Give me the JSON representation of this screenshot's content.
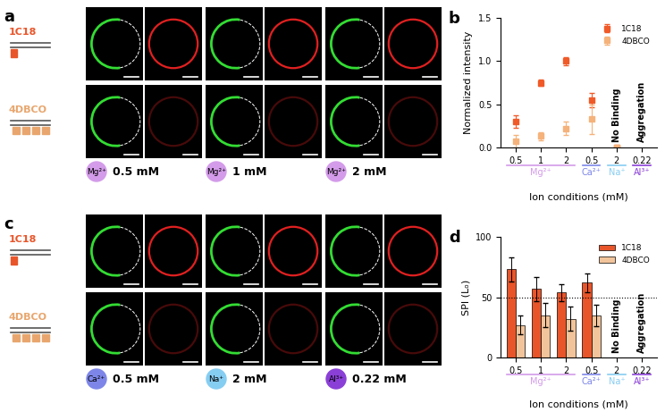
{
  "image_panels": [
    {
      "label": "a",
      "rows": [
        {
          "name": "1C18",
          "color": "#e8552a"
        },
        {
          "name": "4DBCO",
          "color": "#e8a66e"
        }
      ],
      "conditions": [
        {
          "ion": "Mg²⁺",
          "concentration": "0.5 mM",
          "color": "#d39be9"
        },
        {
          "ion": "Mg²⁺",
          "concentration": "1 mM",
          "color": "#d39be9"
        },
        {
          "ion": "Mg²⁺",
          "concentration": "2 mM",
          "color": "#d39be9"
        }
      ]
    },
    {
      "label": "c",
      "rows": [
        {
          "name": "1C18",
          "color": "#e8552a"
        },
        {
          "name": "4DBCO",
          "color": "#e8a66e"
        }
      ],
      "conditions": [
        {
          "ion": "Ca²⁺",
          "concentration": "0.5 mM",
          "color": "#7d86e8"
        },
        {
          "ion": "Na⁺",
          "concentration": "2 mM",
          "color": "#86cdf2"
        },
        {
          "ion": "Al³⁺",
          "concentration": "0.22 mM",
          "color": "#8a3fd6"
        }
      ]
    }
  ],
  "chart_data": [
    {
      "panel": "b",
      "type": "scatter",
      "categories": [
        "0.5",
        "1",
        "2",
        "0.5",
        "2",
        "0.22"
      ],
      "category_groups": [
        "Mg²⁺",
        "Mg²⁺",
        "Mg²⁺",
        "Ca²⁺",
        "Na⁺",
        "Al³⁺"
      ],
      "group_colors": {
        "Mg²⁺": "#d39be9",
        "Ca²⁺": "#7d86e8",
        "Na⁺": "#86cdf2",
        "Al³⁺": "#8a3fd6"
      },
      "x_label": "Ion conditions (mM)",
      "y_label": "Normalized intensity",
      "ylim": [
        0,
        1.5
      ],
      "yticks": [
        {
          "value": 0,
          "label": "0.0"
        },
        {
          "value": 0.5,
          "label": "0.5"
        },
        {
          "value": 1,
          "label": "1.0"
        },
        {
          "value": 1.5,
          "label": "1.5"
        }
      ],
      "legend": "upper right",
      "series": [
        {
          "name": "1C18",
          "color": "#f05a28",
          "marker": "square",
          "values": [
            0.3,
            0.75,
            1.0,
            0.55,
            0,
            null
          ],
          "errors": [
            0.07,
            0.04,
            0.05,
            0.08,
            0,
            null
          ]
        },
        {
          "name": "4DBCO",
          "color": "#f5b27a",
          "marker": "square",
          "values": [
            0.07,
            0.13,
            0.22,
            0.33,
            0,
            null
          ],
          "errors": [
            0.07,
            0.05,
            0.08,
            0.17,
            0,
            null
          ]
        }
      ],
      "annotations": [
        {
          "text": "No Binding",
          "group": "Na⁺"
        },
        {
          "text": "Aggregation",
          "group": "Al³⁺"
        }
      ]
    },
    {
      "panel": "d",
      "type": "bar",
      "categories": [
        "0.5",
        "1",
        "2",
        "0.5",
        "2",
        "0.22"
      ],
      "category_groups": [
        "Mg²⁺",
        "Mg²⁺",
        "Mg²⁺",
        "Ca²⁺",
        "Na⁺",
        "Al³⁺"
      ],
      "group_colors": {
        "Mg²⁺": "#d39be9",
        "Ca²⁺": "#7d86e8",
        "Na⁺": "#86cdf2",
        "Al³⁺": "#8a3fd6"
      },
      "x_label": "Ion conditions (mM)",
      "y_label": "SPI (Lₒ)",
      "ylim": [
        0,
        100
      ],
      "yticks": [
        0,
        50,
        100
      ],
      "reference_line": 50,
      "legend": "upper right",
      "series": [
        {
          "name": "1C18",
          "color": "#e8552a",
          "values": [
            73,
            57,
            54,
            62,
            null,
            null
          ],
          "errors": [
            10,
            10,
            7,
            8,
            null,
            null
          ]
        },
        {
          "name": "4DBCO",
          "color": "#f2c49b",
          "values": [
            27,
            35,
            32,
            35,
            null,
            null
          ],
          "errors": [
            8,
            10,
            10,
            9,
            null,
            null
          ]
        }
      ],
      "annotations": [
        {
          "text": "No Binding",
          "group": "Na⁺"
        },
        {
          "text": "Aggregation",
          "group": "Al³⁺"
        }
      ]
    }
  ]
}
